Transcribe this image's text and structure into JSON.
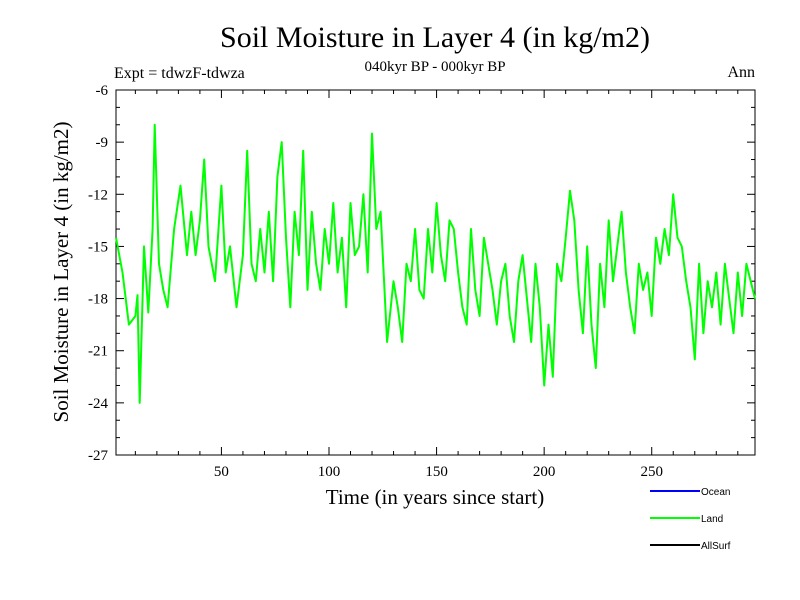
{
  "header": {
    "title": "Soil Moisture in Layer 4 (in kg/m2)",
    "subtitle": "040kyr BP - 000kyr BP",
    "experiment": "Expt = tdwzF-tdwza",
    "season": "Ann"
  },
  "chart_data": {
    "type": "line",
    "title": "Soil Moisture in Layer 4 (in kg/m2)",
    "subtitle": "040kyr BP - 000kyr BP",
    "xlabel": "Time (in years since start)",
    "ylabel": "Soil Moisture in Layer 4 (in kg/m2)",
    "xlim": [
      1,
      298
    ],
    "ylim": [
      -27,
      -6
    ],
    "xticks": [
      50,
      100,
      150,
      200,
      250
    ],
    "xtick_labels": [
      "50",
      "100",
      "150",
      "200",
      "250"
    ],
    "yticks": [
      -6,
      -9,
      -12,
      -15,
      -18,
      -21,
      -24,
      -27
    ],
    "ytick_labels": [
      "-6",
      "-9",
      "-12",
      "-15",
      "-18",
      "-21",
      "-24",
      "-27"
    ],
    "legend_position": "bottom-right",
    "series": [
      {
        "name": "Land",
        "color": "#00ff00",
        "x": [
          1,
          4,
          7,
          10,
          11,
          12,
          14,
          16,
          18,
          19,
          21,
          23,
          25,
          28,
          31,
          34,
          36,
          38,
          40,
          42,
          44,
          47,
          50,
          52,
          54,
          57,
          60,
          62,
          64,
          66,
          68,
          70,
          72,
          74,
          76,
          78,
          80,
          82,
          84,
          86,
          88,
          90,
          92,
          94,
          96,
          98,
          100,
          102,
          104,
          106,
          108,
          110,
          112,
          114,
          116,
          118,
          120,
          122,
          124,
          127,
          130,
          132,
          134,
          136,
          138,
          140,
          142,
          144,
          146,
          148,
          150,
          152,
          154,
          156,
          158,
          160,
          162,
          164,
          166,
          168,
          170,
          172,
          174,
          176,
          178,
          180,
          182,
          184,
          186,
          188,
          190,
          192,
          194,
          196,
          198,
          200,
          202,
          204,
          206,
          208,
          210,
          212,
          214,
          216,
          218,
          220,
          222,
          224,
          226,
          228,
          230,
          232,
          234,
          236,
          238,
          240,
          242,
          244,
          246,
          248,
          250,
          252,
          254,
          256,
          258,
          260,
          262,
          264,
          266,
          268,
          270,
          272,
          274,
          276,
          278,
          280,
          282,
          284,
          286,
          288,
          290,
          292,
          294,
          296,
          298
        ],
        "values": [
          -14.5,
          -16.5,
          -19.5,
          -19.0,
          -17.8,
          -24.0,
          -15.0,
          -18.8,
          -14.0,
          -8.0,
          -16.0,
          -17.5,
          -18.5,
          -14.0,
          -11.5,
          -15.5,
          -13.0,
          -15.5,
          -13.5,
          -10.0,
          -15.0,
          -17.0,
          -11.5,
          -16.5,
          -15.0,
          -18.5,
          -15.5,
          -9.5,
          -16.0,
          -17.0,
          -14.0,
          -16.5,
          -13.0,
          -17.0,
          -11.0,
          -9.0,
          -14.5,
          -18.5,
          -13.0,
          -15.5,
          -9.5,
          -17.5,
          -13.0,
          -16.0,
          -17.5,
          -14.0,
          -16.0,
          -12.5,
          -16.5,
          -14.5,
          -18.5,
          -12.5,
          -15.5,
          -15.0,
          -12.0,
          -16.5,
          -8.5,
          -14.0,
          -13.0,
          -20.5,
          -17.0,
          -18.5,
          -20.5,
          -16.0,
          -17.0,
          -14.0,
          -17.5,
          -18.0,
          -14.0,
          -16.5,
          -12.5,
          -15.5,
          -17.0,
          -13.5,
          -14.0,
          -16.5,
          -18.5,
          -19.5,
          -14.0,
          -17.5,
          -19.0,
          -14.5,
          -16.0,
          -17.5,
          -19.5,
          -17.0,
          -16.0,
          -19.0,
          -20.5,
          -17.0,
          -15.5,
          -18.0,
          -20.5,
          -16.0,
          -18.5,
          -23.0,
          -19.5,
          -22.5,
          -16.0,
          -17.0,
          -14.5,
          -11.8,
          -13.5,
          -17.5,
          -20.0,
          -15.0,
          -19.5,
          -22.0,
          -16.0,
          -18.5,
          -13.5,
          -17.0,
          -15.0,
          -13.0,
          -16.5,
          -18.5,
          -20.0,
          -16.0,
          -17.5,
          -16.5,
          -19.0,
          -14.5,
          -16.0,
          -14.0,
          -15.5,
          -12.0,
          -14.5,
          -15.0,
          -17.0,
          -18.5,
          -21.5,
          -16.0,
          -20.0,
          -17.0,
          -18.5,
          -16.5,
          -19.5,
          -16.0,
          -18.0,
          -20.0,
          -16.5,
          -19.0,
          -16.0,
          -17.0,
          -18.0
        ]
      },
      {
        "name": "Ocean",
        "color": "#0000ff",
        "values": []
      },
      {
        "name": "AllSurf",
        "color": "#000000",
        "values": []
      }
    ]
  },
  "legend": {
    "items": [
      {
        "label": "Ocean",
        "color": "#0000ff"
      },
      {
        "label": "Land",
        "color": "#00ff00"
      },
      {
        "label": "AllSurf",
        "color": "#000000"
      }
    ]
  }
}
